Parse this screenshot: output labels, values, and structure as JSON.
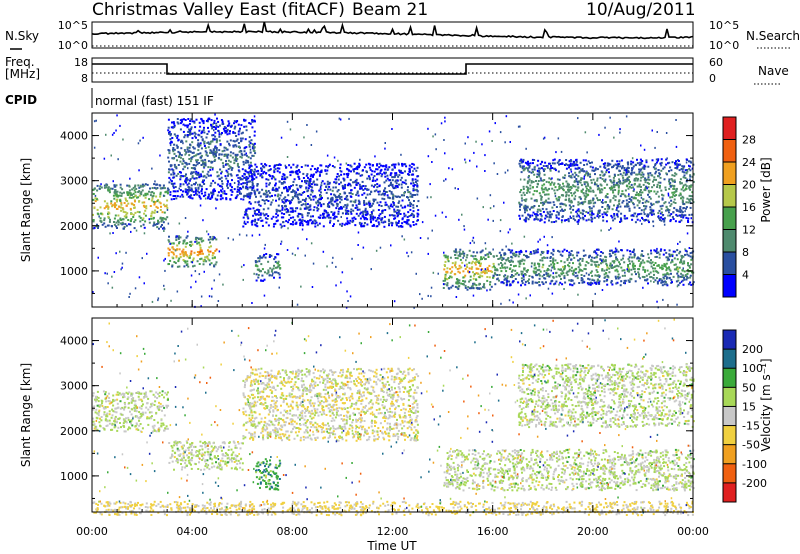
{
  "header": {
    "title": "Christmas Valley East (fitACF)",
    "beam": "Beam 21",
    "date": "10/Aug/2011"
  },
  "strip": {
    "nsky_label": "N.Sky",
    "nsky_ticks": [
      "10^5",
      "10^0"
    ],
    "nsearch_ticks": [
      "10^5",
      "10^0"
    ],
    "nsearch_label": "N.Search",
    "freq_label": "Freq.",
    "freq_unit": "[MHz]",
    "freq_ticks": [
      "18",
      "8"
    ],
    "nave_ticks": [
      "60",
      "0"
    ],
    "nave_label": "Nave",
    "cpid_label": "CPID",
    "cpid_text": "normal (fast) 151 IF"
  },
  "colors": {
    "power": [
      "#0000ff",
      "#2a4fa0",
      "#4f8a6e",
      "#47a04c",
      "#b6c84a",
      "#f0a020",
      "#f06010",
      "#e02020"
    ],
    "velocity": [
      "#1a2ab4",
      "#1d6e8c",
      "#3aaa3a",
      "#a8d858",
      "#c8c8c8",
      "#f0d040",
      "#f0a020",
      "#f06010",
      "#e02020"
    ]
  },
  "chart_data": [
    {
      "type": "heatmap",
      "xlabel": "",
      "ylabel": "Slant Range [km]",
      "x_ticks": [
        "00:00",
        "04:00",
        "08:00",
        "12:00",
        "16:00",
        "20:00",
        "00:00"
      ],
      "xlim_hours": [
        0,
        24
      ],
      "y_ticks": [
        1000,
        2000,
        3000,
        4000
      ],
      "ylim": [
        200,
        4500
      ],
      "colorbar_label": "Power [dB]",
      "colorbar_ticks": [
        4,
        8,
        12,
        16,
        20,
        24,
        28
      ],
      "colorbar_range": [
        0,
        32
      ],
      "echo_bands": [
        {
          "t": [
            0,
            3
          ],
          "range": [
            1950,
            2950
          ],
          "peak_db": 22
        },
        {
          "t": [
            3,
            5
          ],
          "range": [
            1100,
            1800
          ],
          "peak_db": 24
        },
        {
          "t": [
            3,
            6.5
          ],
          "range": [
            2600,
            4400
          ],
          "peak_db": 8
        },
        {
          "t": [
            6.5,
            7.5
          ],
          "range": [
            800,
            1400
          ],
          "peak_db": 12
        },
        {
          "t": [
            6,
            13
          ],
          "range": [
            2000,
            3400
          ],
          "peak_db": 6
        },
        {
          "t": [
            14,
            16
          ],
          "range": [
            600,
            1500
          ],
          "peak_db": 22
        },
        {
          "t": [
            16,
            24
          ],
          "range": [
            700,
            1500
          ],
          "peak_db": 14
        },
        {
          "t": [
            17,
            24
          ],
          "range": [
            2100,
            3500
          ],
          "peak_db": 12
        }
      ]
    },
    {
      "type": "heatmap",
      "xlabel": "Time UT",
      "ylabel": "Slant Range [km]",
      "x_ticks": [
        "00:00",
        "04:00",
        "08:00",
        "12:00",
        "16:00",
        "20:00",
        "00:00"
      ],
      "xlim_hours": [
        0,
        24
      ],
      "y_ticks": [
        1000,
        2000,
        3000,
        4000
      ],
      "ylim": [
        200,
        4500
      ],
      "colorbar_label": "Velocity [m s⁻¹]",
      "colorbar_ticks": [
        200,
        100,
        50,
        15,
        -15,
        -50,
        -100,
        -200
      ],
      "echo_bands": [
        {
          "t": [
            0,
            3
          ],
          "range": [
            2000,
            2900
          ],
          "velocity": 0
        },
        {
          "t": [
            3,
            6
          ],
          "range": [
            1150,
            1800
          ],
          "velocity": 0
        },
        {
          "t": [
            6.5,
            7.5
          ],
          "range": [
            700,
            1400
          ],
          "velocity": 60
        },
        {
          "t": [
            6,
            13
          ],
          "range": [
            1800,
            3400
          ],
          "velocity": -20
        },
        {
          "t": [
            14,
            24
          ],
          "range": [
            700,
            1600
          ],
          "velocity": 0
        },
        {
          "t": [
            17,
            24
          ],
          "range": [
            2100,
            3500
          ],
          "velocity": 0
        },
        {
          "t": [
            0,
            24
          ],
          "range": [
            150,
            450
          ],
          "velocity": -40
        }
      ]
    }
  ]
}
